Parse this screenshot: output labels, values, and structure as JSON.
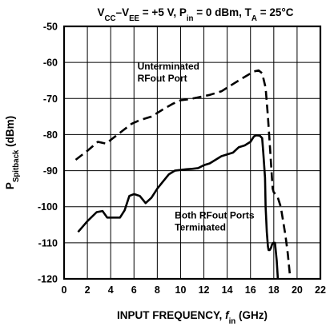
{
  "chart_data": {
    "type": "line",
    "title": {
      "parts": [
        {
          "t": "V"
        },
        {
          "t": "CC",
          "sub": true
        },
        {
          "t": "–V"
        },
        {
          "t": "EE",
          "sub": true
        },
        {
          "t": " = +5 V, P"
        },
        {
          "t": "in",
          "sub": true
        },
        {
          "t": " = 0 dBm, T"
        },
        {
          "t": "A",
          "sub": true
        },
        {
          "t": " = 25°C"
        }
      ]
    },
    "xlabel": {
      "parts": [
        {
          "t": "INPUT FREQUENCY, "
        },
        {
          "t": "f",
          "italic": true
        },
        {
          "t": "in",
          "sub": true
        },
        {
          "t": " (GHz)"
        }
      ]
    },
    "ylabel": {
      "parts": [
        {
          "t": "P"
        },
        {
          "t": "Spitback",
          "sub": true
        },
        {
          "t": " (dBm)"
        }
      ]
    },
    "xlim": [
      0,
      22
    ],
    "ylim": [
      -120,
      -50
    ],
    "xticks": [
      0,
      2,
      4,
      6,
      8,
      10,
      12,
      14,
      16,
      18,
      20,
      22
    ],
    "yticks": [
      -50,
      -60,
      -70,
      -80,
      -90,
      -100,
      -110,
      -120
    ],
    "grid": true,
    "series": [
      {
        "dash": true,
        "x": [
          1,
          2,
          2.9,
          3.6,
          4.2,
          5,
          5.8,
          6.5,
          7.5,
          8.5,
          9.3,
          10,
          10.7,
          11.5,
          12.5,
          13.5,
          14.5,
          15.5,
          16.3,
          16.7,
          17.0,
          17.3,
          17.5,
          17.7,
          17.9,
          18.0,
          18.3,
          18.6,
          18.8,
          19.0,
          19.2,
          19.4
        ],
        "y": [
          -87,
          -84.5,
          -82,
          -82.5,
          -81,
          -79,
          -77,
          -76,
          -75,
          -73,
          -71.5,
          -70.5,
          -70.2,
          -69.7,
          -69,
          -68,
          -66,
          -64,
          -62.5,
          -62.2,
          -63,
          -67,
          -75,
          -85,
          -95,
          -96,
          -97,
          -100,
          -104,
          -108,
          -113,
          -119.5
        ]
      },
      {
        "dash": false,
        "x": [
          1.2,
          2.0,
          2.8,
          3.3,
          3.7,
          4.3,
          4.8,
          5.2,
          5.6,
          6.0,
          6.5,
          7.0,
          7.5,
          8.0,
          8.5,
          9.0,
          9.5,
          10.0,
          10.5,
          11.0,
          11.5,
          12.0,
          12.5,
          13.0,
          13.5,
          14.0,
          14.5,
          15.0,
          15.5,
          16.0,
          16.3,
          16.5,
          16.8,
          17.0,
          17.1,
          17.25,
          17.3,
          17.4,
          17.5,
          17.55,
          17.65,
          17.75,
          17.85,
          17.95,
          18.1,
          18.25,
          18.35
        ],
        "y": [
          -107,
          -104,
          -101.5,
          -101.2,
          -103,
          -103,
          -103,
          -101,
          -97,
          -96.5,
          -97,
          -99,
          -97.5,
          -95,
          -93,
          -91,
          -90,
          -89.8,
          -89.6,
          -89.5,
          -89.3,
          -88.5,
          -88,
          -87,
          -86,
          -85.5,
          -85,
          -83.5,
          -83,
          -82,
          -80.5,
          -80.2,
          -80.3,
          -81,
          -85,
          -92,
          -100,
          -107,
          -111,
          -112,
          -112,
          -111.5,
          -110.5,
          -110,
          -110,
          -115,
          -120
        ]
      }
    ],
    "annotations": [
      {
        "lines": [
          "Unterminated",
          "RFout Port"
        ],
        "x": 6.3,
        "y": -62,
        "align": "start"
      },
      {
        "lines": [
          "Both RFout Ports",
          "Terminated"
        ],
        "x": 9.5,
        "y": -103.3,
        "align": "start"
      }
    ]
  }
}
